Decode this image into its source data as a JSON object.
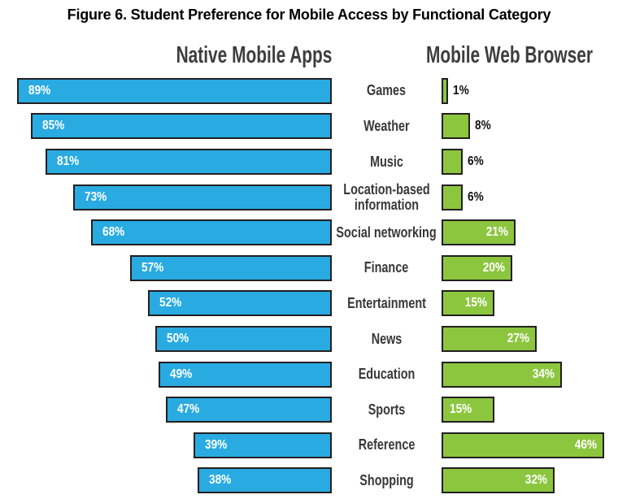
{
  "title": "Figure 6. Student Preference for Mobile Access by Functional Category",
  "headers": {
    "left": "Native Mobile Apps",
    "right": "Mobile Web Browser"
  },
  "colors": {
    "blue": "#29ABE2",
    "green": "#8CC63F",
    "bar_border": "#231F20",
    "header_text": "#3D3D3D",
    "category_text": "#383838"
  },
  "chart_data": {
    "type": "bar",
    "orientation": "horizontal-diverging",
    "value_suffix": "%",
    "value_range": [
      0,
      100
    ],
    "grid": false,
    "categories": [
      "Games",
      "Weather",
      "Music",
      "Location-based\ninformation",
      "Social networking",
      "Finance",
      "Entertainment",
      "News",
      "Education",
      "Sports",
      "Reference",
      "Shopping"
    ],
    "series": [
      {
        "name": "Native Mobile Apps",
        "color": "#29ABE2",
        "side": "left",
        "values": [
          89,
          85,
          81,
          73,
          68,
          57,
          52,
          50,
          49,
          47,
          39,
          38
        ]
      },
      {
        "name": "Mobile Web Browser",
        "color": "#8CC63F",
        "side": "right",
        "values": [
          1,
          8,
          6,
          6,
          21,
          20,
          15,
          27,
          34,
          15,
          46,
          32
        ]
      }
    ],
    "right_label_positions": [
      "outside",
      "outside",
      "outside",
      "outside",
      "inside-right",
      "inside-right",
      "inside-right",
      "inside-right",
      "inside-right",
      "inside-left",
      "inside-right",
      "inside-right"
    ]
  }
}
